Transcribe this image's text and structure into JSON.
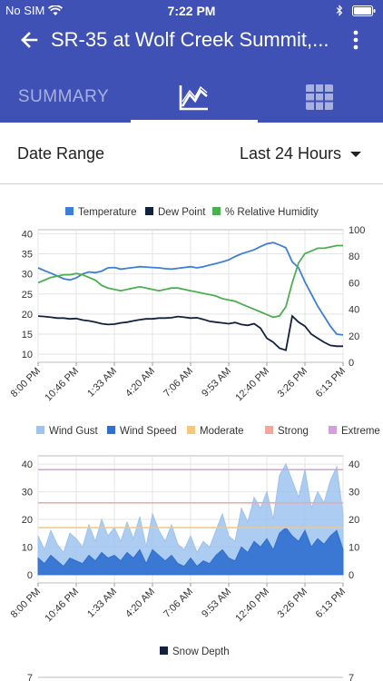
{
  "status_bar": {
    "carrier": "No SIM",
    "time": "7:22 PM"
  },
  "header": {
    "title": "SR-35 at Wolf Creek Summit,..."
  },
  "tabs": [
    {
      "label": "SUMMARY",
      "icon": "summary-text"
    },
    {
      "label": "",
      "icon": "line-chart-icon",
      "active": true
    },
    {
      "label": "",
      "icon": "table-grid-icon"
    }
  ],
  "date_range": {
    "label": "Date Range",
    "value": "Last 24 Hours"
  },
  "colors": {
    "header": "#3f51b5",
    "temperature": "#3d7fd6",
    "dew_point": "#14213d",
    "humidity": "#4caf50",
    "wind_gust": "#9fc3ee",
    "wind_speed": "#2f6fd0",
    "moderate": "#f7c77a",
    "strong": "#f2a6a0",
    "extreme": "#d4a0dc",
    "snow_depth": "#14213d"
  },
  "chart_data": [
    {
      "type": "line",
      "legend": [
        "Temperature",
        "Dew Point",
        "% Relative Humidity"
      ],
      "x_ticks": [
        "8:00 PM",
        "10:46 PM",
        "1:33 AM",
        "4:20 AM",
        "7:06 AM",
        "9:53 AM",
        "12:40 PM",
        "3:26 PM",
        "6:13 PM"
      ],
      "y_left_ticks": [
        10,
        15,
        20,
        25,
        30,
        35,
        40
      ],
      "y_right_ticks": [
        0,
        20,
        40,
        60,
        80,
        100
      ],
      "ylim_left": [
        8,
        41
      ],
      "ylim_right": [
        0,
        100
      ],
      "x_range": [
        0,
        24
      ],
      "series": [
        {
          "name": "Temperature",
          "axis": "left",
          "x": [
            0,
            0.5,
            1,
            1.5,
            2,
            2.5,
            3,
            3.5,
            4,
            4.5,
            5,
            5.5,
            6,
            6.5,
            7,
            7.5,
            8,
            8.5,
            9,
            9.5,
            10,
            10.5,
            11,
            11.5,
            12,
            12.5,
            13,
            13.5,
            14,
            14.5,
            15,
            15.5,
            16,
            16.5,
            17,
            17.5,
            18,
            18.5,
            19,
            19.5,
            20,
            20.5,
            21,
            21.5,
            22,
            22.5,
            23,
            23.5,
            24
          ],
          "values": [
            31.5,
            30.8,
            30.2,
            29.5,
            28.8,
            28.5,
            29,
            30,
            30.5,
            30.3,
            30.7,
            31.5,
            31.6,
            31.2,
            31.4,
            31.6,
            31.8,
            31.7,
            31.6,
            31.5,
            31.3,
            31.2,
            31.4,
            31.6,
            31.8,
            31.5,
            31.8,
            32.2,
            32.6,
            33,
            33.5,
            34.3,
            35,
            35.5,
            36,
            36.8,
            37.5,
            37.8,
            37.2,
            36.5,
            33,
            31.5,
            28,
            25,
            22,
            19.5,
            17,
            15,
            14.8
          ]
        },
        {
          "name": "Dew Point",
          "axis": "left",
          "x": [
            0,
            0.5,
            1,
            1.5,
            2,
            2.5,
            3,
            3.5,
            4,
            4.5,
            5,
            5.5,
            6,
            6.5,
            7,
            7.5,
            8,
            8.5,
            9,
            9.5,
            10,
            10.5,
            11,
            11.5,
            12,
            12.5,
            13,
            13.5,
            14,
            14.5,
            15,
            15.5,
            16,
            16.5,
            17,
            17.5,
            18,
            18.5,
            19,
            19.5,
            20,
            20.5,
            21,
            21.5,
            22,
            22.5,
            23,
            23.5,
            24
          ],
          "values": [
            19.5,
            19.4,
            19.2,
            19,
            19,
            18.8,
            18.9,
            18.5,
            18.3,
            18,
            17.6,
            17.4,
            17.5,
            17.8,
            18,
            18.3,
            18.6,
            18.8,
            18.8,
            19,
            19,
            19.1,
            19.4,
            19.2,
            19,
            19.1,
            18.7,
            18.2,
            18,
            17.8,
            17.6,
            17.9,
            17.4,
            17.2,
            17.6,
            16.5,
            14,
            13,
            11.5,
            11,
            19.5,
            18,
            17,
            15,
            14,
            13,
            12.2,
            12,
            12
          ]
        },
        {
          "name": "% Relative Humidity",
          "axis": "right",
          "x": [
            0,
            0.5,
            1,
            1.5,
            2,
            2.5,
            3,
            3.5,
            4,
            4.5,
            5,
            5.5,
            6,
            6.5,
            7,
            7.5,
            8,
            8.5,
            9,
            9.5,
            10,
            10.5,
            11,
            11.5,
            12,
            12.5,
            13,
            13.5,
            14,
            14.5,
            15,
            15.5,
            16,
            16.5,
            17,
            17.5,
            18,
            18.5,
            19,
            19.5,
            20,
            20.5,
            21,
            21.5,
            22,
            22.5,
            23,
            23.5,
            24
          ],
          "values": [
            60,
            62,
            64,
            65,
            66,
            66,
            67,
            66,
            64,
            62,
            58,
            56,
            55,
            54,
            55,
            56,
            57,
            56,
            55,
            54,
            55,
            56,
            56,
            55,
            54,
            53,
            52,
            51,
            50,
            48,
            47,
            46,
            44,
            42,
            40,
            38,
            36,
            34,
            35,
            42,
            60,
            75,
            82,
            84,
            86,
            86,
            87,
            88,
            88
          ]
        }
      ]
    },
    {
      "type": "area",
      "legend": [
        "Wind Gust",
        "Wind Speed",
        "Moderate",
        "Strong",
        "Extreme"
      ],
      "x_ticks": [
        "8:00 PM",
        "10:46 PM",
        "1:33 AM",
        "4:20 AM",
        "7:06 AM",
        "9:53 AM",
        "12:40 PM",
        "3:26 PM",
        "6:13 PM"
      ],
      "y_left_ticks": [
        0,
        10,
        20,
        30,
        40
      ],
      "y_right_ticks": [
        0,
        10,
        20,
        30,
        40
      ],
      "ylim": [
        -3,
        43
      ],
      "x_range": [
        0,
        24
      ],
      "thresholds": [
        {
          "name": "Moderate",
          "value": 17
        },
        {
          "name": "Strong",
          "value": 26
        },
        {
          "name": "Extreme",
          "value": 38
        }
      ],
      "series": [
        {
          "name": "Wind Gust",
          "x": [
            0,
            0.5,
            1,
            1.5,
            2,
            2.5,
            3,
            3.5,
            4,
            4.5,
            5,
            5.5,
            6,
            6.5,
            7,
            7.5,
            8,
            8.5,
            9,
            9.5,
            10,
            10.5,
            11,
            11.5,
            12,
            12.5,
            13,
            13.5,
            14,
            14.5,
            15,
            15.5,
            16,
            16.5,
            17,
            17.5,
            18,
            18.5,
            19,
            19.5,
            20,
            20.5,
            21,
            21.5,
            22,
            22.5,
            23,
            23.5,
            24
          ],
          "values": [
            14,
            9,
            16,
            11,
            8,
            15,
            13,
            10,
            18,
            12,
            20,
            14,
            17,
            12,
            19,
            13,
            21,
            10,
            22,
            16,
            12,
            18,
            11,
            9,
            14,
            8,
            12,
            10,
            16,
            22,
            14,
            12,
            24,
            19,
            28,
            24,
            30,
            20,
            36,
            40,
            34,
            28,
            38,
            24,
            30,
            26,
            34,
            39,
            22
          ]
        },
        {
          "name": "Wind Speed",
          "x": [
            0,
            0.5,
            1,
            1.5,
            2,
            2.5,
            3,
            3.5,
            4,
            4.5,
            5,
            5.5,
            6,
            6.5,
            7,
            7.5,
            8,
            8.5,
            9,
            9.5,
            10,
            10.5,
            11,
            11.5,
            12,
            12.5,
            13,
            13.5,
            14,
            14.5,
            15,
            15.5,
            16,
            16.5,
            17,
            17.5,
            18,
            18.5,
            19,
            19.5,
            20,
            20.5,
            21,
            21.5,
            22,
            22.5,
            23,
            23.5,
            24
          ],
          "values": [
            6,
            4,
            7,
            5,
            3,
            6,
            5,
            4,
            7,
            5,
            8,
            6,
            7,
            5,
            8,
            6,
            9,
            4,
            9,
            7,
            5,
            7,
            4,
            3,
            6,
            3,
            5,
            4,
            7,
            9,
            6,
            5,
            10,
            8,
            12,
            10,
            13,
            9,
            15,
            17,
            14,
            12,
            16,
            10,
            13,
            11,
            14,
            16,
            9
          ]
        }
      ]
    },
    {
      "type": "line",
      "legend": [
        "Snow Depth"
      ],
      "y_left_ticks": [
        7
      ],
      "y_right_ticks": [
        7
      ]
    }
  ]
}
